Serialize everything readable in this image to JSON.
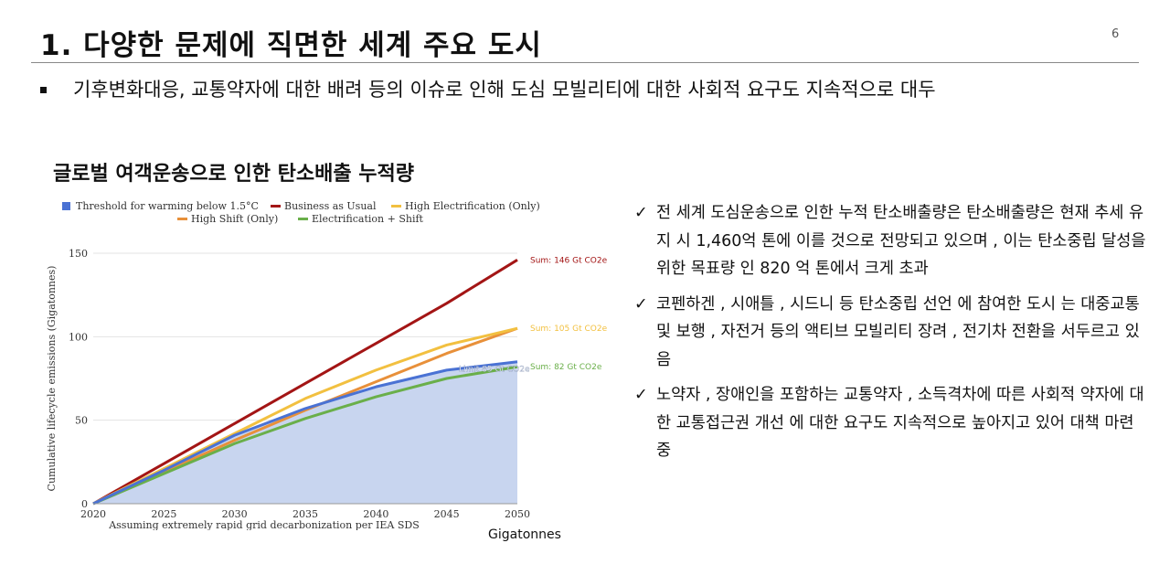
{
  "slide": {
    "title": "1. 다양한 문제에 직면한 세계 주요 도시",
    "page_number": "6",
    "bullet": "기후변화대응, 교통약자에 대한 배려 등의 이슈로 인해 도심 모빌리티에 대한 사회적 요구도 지속적으로 대두",
    "chart_heading": "글로벌 여객운송으로 인한 탄소배출 누적량",
    "under_chart_label": "Gigatonnes",
    "notes": [
      {
        "check": "✓",
        "text": "전 세계 도심운송으로 인한 누적 탄소배출량은 탄소배출량은 현재 추세 유지 시 1,460억 톤에 이를 것으로 전망되고 있으며 , 이는 탄소중립 달성을 위한 목표량 인 820 억 톤에서 크게 초과"
      },
      {
        "check": "✓",
        "text": "코펜하겐 , 시애틀 , 시드니 등 탄소중립 선언 에 참여한 도시 는 대중교통 및 보행 , 자전거 등의 액티브 모빌리티 장려 , 전기차 전환을 서두르고 있음"
      },
      {
        "check": "✓",
        "text": "노약자 , 장애인을 포함하는 교통약자 , 소득격차에 따른 사회적 약자에 대한 교통접근권 개선 에 대한 요구도 지속적으로 높아지고 있어 대책 마련 중"
      }
    ]
  },
  "chart_data": {
    "type": "line",
    "ylabel": "Cumulative lifecycle emissions (Gigatonnes)",
    "xlabel": "Assuming extremely rapid grid decarbonization per IEA SDS",
    "x": [
      2020,
      2025,
      2030,
      2035,
      2040,
      2045,
      2050
    ],
    "xlim": [
      2020,
      2050
    ],
    "ylim": [
      0,
      150
    ],
    "yticks": [
      0,
      50,
      100,
      150
    ],
    "grid": true,
    "legend_position": "top",
    "series": [
      {
        "name": "Threshold for warming below 1.5°C",
        "style": "area",
        "color": "#4a72d4",
        "fill": "#c8d5ef",
        "values": [
          0,
          20,
          41,
          57,
          70,
          80,
          85
        ],
        "end_label": "Limit 85 Gt CO2e"
      },
      {
        "name": "Business as Usual",
        "color": "#a31515",
        "values": [
          0,
          24,
          48,
          72,
          96,
          120,
          146
        ],
        "end_label": "Sum: 146 Gt CO2e"
      },
      {
        "name": "High Electrification (Only)",
        "color": "#f2c040",
        "values": [
          0,
          21,
          42,
          63,
          80,
          95,
          105
        ],
        "end_label": "Sum: 105 Gt CO2e"
      },
      {
        "name": "High Shift (Only)",
        "color": "#e8903a",
        "values": [
          0,
          19,
          38,
          56,
          73,
          90,
          105
        ],
        "end_label": ""
      },
      {
        "name": "Electrification + Shift",
        "color": "#6aaf4a",
        "values": [
          0,
          18,
          36,
          51,
          64,
          75,
          82
        ],
        "end_label": "Sum: 82 Gt CO2e"
      }
    ]
  }
}
